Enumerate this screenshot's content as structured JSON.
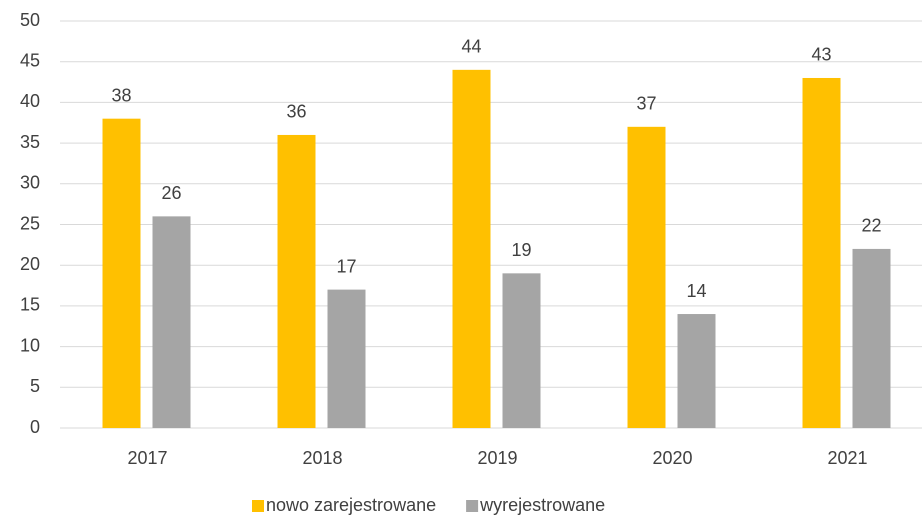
{
  "chart_data": {
    "type": "bar",
    "categories": [
      "2017",
      "2018",
      "2019",
      "2020",
      "2021"
    ],
    "series": [
      {
        "name": "nowo zarejestrowane",
        "color": "#ffc000",
        "values": [
          38,
          36,
          44,
          37,
          43
        ]
      },
      {
        "name": "wyrejestrowane",
        "color": "#a5a5a5",
        "values": [
          26,
          17,
          19,
          14,
          22
        ]
      }
    ],
    "ylim": [
      0,
      50
    ],
    "yticks": [
      0,
      5,
      10,
      15,
      20,
      25,
      30,
      35,
      40,
      45,
      50
    ],
    "grid": true,
    "legend": "bottom"
  }
}
